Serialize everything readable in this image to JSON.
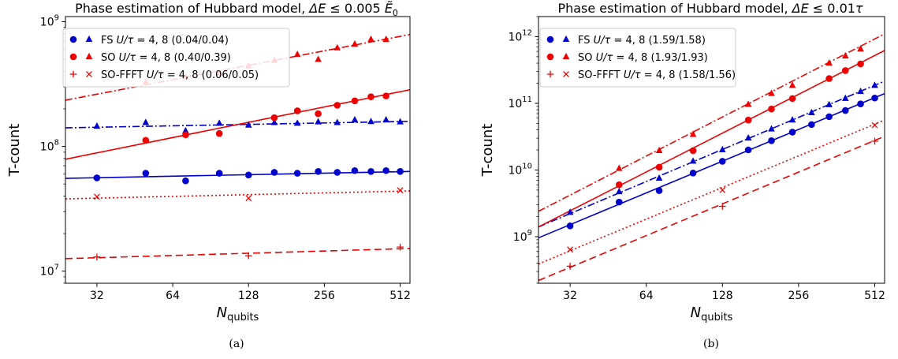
{
  "chart_data": [
    {
      "type": "scatter",
      "title": "Phase estimation of Hubbard model, ΔE ≤ 0.005 Ẽ₀",
      "title_parts": {
        "lead": "Phase estimation of Hubbard model, ",
        "delta": "ΔE",
        "le": " ≤ 0.005 ",
        "sym": "Ẽ",
        "sub": "0"
      },
      "caption": "(a)",
      "xlabel": {
        "main": "N",
        "sub": "qubits"
      },
      "ylabel": "T-count",
      "x_scale": "log2",
      "y_scale": "log10",
      "xlim": [
        24,
        560
      ],
      "ylim": [
        8000000,
        1100000000
      ],
      "x_ticks": [
        32,
        64,
        128,
        256,
        512
      ],
      "x_tick_labels": [
        "32",
        "64",
        "128",
        "256",
        "512"
      ],
      "y_ticks": [
        10000000,
        100000000,
        1000000000
      ],
      "y_tick_labels": [
        {
          "base": "10",
          "exp": "7"
        },
        {
          "base": "10",
          "exp": "8"
        },
        {
          "base": "10",
          "exp": "9"
        }
      ],
      "legend_position": "top-left",
      "series": [
        {
          "name": "FS U/τ = 4",
          "color": "#0000cc",
          "marker": "circle",
          "x": [
            32,
            50,
            72,
            98,
            128,
            162,
            200,
            242,
            288,
            338,
            392,
            450,
            512
          ],
          "y": [
            56000000,
            61000000,
            53000000,
            61000000,
            59000000,
            62000000,
            61000000,
            63000000,
            62000000,
            64000000,
            63000000,
            64000000,
            63000000
          ],
          "fit": {
            "x": [
              24,
              560
            ],
            "y": [
              55500000,
              63000000
            ],
            "dash": "solid"
          }
        },
        {
          "name": "FS U/τ = 8",
          "color": "#0000cc",
          "marker": "triangle",
          "x": [
            32,
            50,
            72,
            98,
            128,
            162,
            200,
            242,
            288,
            338,
            392,
            450,
            512
          ],
          "y": [
            145000000,
            155000000,
            133000000,
            153000000,
            148000000,
            155000000,
            153000000,
            157000000,
            155000000,
            163000000,
            158000000,
            163000000,
            157000000
          ],
          "fit": {
            "x": [
              24,
              560
            ],
            "y": [
              141000000,
              159000000
            ],
            "dash": "dashdot"
          }
        },
        {
          "name": "SO U/τ = 4",
          "color": "#ee0000",
          "marker": "circle",
          "x": [
            50,
            72,
            98,
            162,
            200,
            242,
            288,
            338,
            392,
            450
          ],
          "y": [
            112000000,
            124000000,
            127000000,
            170000000,
            193000000,
            183000000,
            214000000,
            232000000,
            250000000,
            254000000
          ],
          "fit": {
            "x": [
              24,
              560
            ],
            "y": [
              79000000,
              285000000
            ],
            "dash": "solid"
          }
        },
        {
          "name": "SO U/τ = 8",
          "color": "#ee0000",
          "marker": "triangle",
          "x": [
            50,
            72,
            98,
            128,
            162,
            200,
            242,
            288,
            338,
            392,
            450
          ],
          "y": [
            328000000,
            360000000,
            387000000,
            440000000,
            490000000,
            545000000,
            497000000,
            615000000,
            660000000,
            720000000,
            720000000
          ],
          "fit": {
            "x": [
              24,
              560
            ],
            "y": [
              235000000,
              790000000
            ],
            "dash": "dashdot"
          }
        },
        {
          "name": "SO-FFFT U/τ = 4",
          "color": "#ee0000",
          "marker": "plus",
          "x": [
            32,
            128,
            512
          ],
          "y": [
            13000000,
            13300000,
            15600000
          ],
          "fit": {
            "x": [
              24,
              560
            ],
            "y": [
              12600000,
              15200000
            ],
            "dash": "dashed"
          }
        },
        {
          "name": "SO-FFFT U/τ = 8",
          "color": "#ee0000",
          "marker": "x",
          "x": [
            32,
            128,
            512
          ],
          "y": [
            39500000,
            38500000,
            44500000
          ],
          "fit": {
            "x": [
              24,
              560
            ],
            "y": [
              38000000,
              44000000
            ],
            "dash": "dotted"
          }
        }
      ],
      "legend": [
        {
          "label": "FS",
          "expr": "U/τ",
          "rest": " = 4, 8 (0.04/0.04)",
          "color": "#0000cc",
          "markers": [
            "circle",
            "triangle"
          ]
        },
        {
          "label": "SO",
          "expr": "U/τ",
          "rest": " = 4, 8 (0.40/0.39)",
          "color": "#ee0000",
          "markers": [
            "circle",
            "triangle"
          ]
        },
        {
          "label": "SO-FFFT",
          "expr": "U/τ",
          "rest": " = 4, 8 (0.06/0.05)",
          "color": "#ee0000",
          "markers": [
            "plus",
            "x"
          ]
        }
      ]
    },
    {
      "type": "scatter",
      "title": "Phase estimation of Hubbard model, ΔE ≤ 0.01τ",
      "title_parts": {
        "lead": "Phase estimation of Hubbard model, ",
        "delta": "ΔE",
        "le": " ≤ 0.01",
        "sym": "τ",
        "sub": ""
      },
      "caption": "(b)",
      "xlabel": {
        "main": "N",
        "sub": "qubits"
      },
      "ylabel": "T-count",
      "x_scale": "log2",
      "y_scale": "log10",
      "xlim": [
        24,
        560
      ],
      "ylim": [
        200000000,
        2000000000000
      ],
      "x_ticks": [
        32,
        64,
        128,
        256,
        512
      ],
      "x_tick_labels": [
        "32",
        "64",
        "128",
        "256",
        "512"
      ],
      "y_ticks": [
        1000000000,
        10000000000,
        100000000000,
        1000000000000
      ],
      "y_tick_labels": [
        {
          "base": "10",
          "exp": "9"
        },
        {
          "base": "10",
          "exp": "10"
        },
        {
          "base": "10",
          "exp": "11"
        },
        {
          "base": "10",
          "exp": "12"
        }
      ],
      "legend_position": "top-left",
      "series": [
        {
          "name": "FS U/τ = 4",
          "color": "#0000cc",
          "marker": "circle",
          "x": [
            32,
            50,
            72,
            98,
            128,
            162,
            200,
            242,
            288,
            338,
            392,
            450,
            512
          ],
          "y": [
            1450000000,
            3300000000,
            4900000000,
            9000000000,
            13500000000,
            20000000000,
            27500000000,
            37000000000,
            48000000000,
            63000000000,
            78000000000,
            98000000000,
            120000000000
          ],
          "fit": {
            "x": [
              24,
              560
            ],
            "y": [
              960000000,
              140000000000
            ],
            "dash": "solid"
          }
        },
        {
          "name": "FS U/τ = 8",
          "color": "#0000cc",
          "marker": "triangle",
          "x": [
            32,
            50,
            72,
            98,
            128,
            162,
            200,
            242,
            288,
            338,
            392,
            450,
            512
          ],
          "y": [
            2300000000,
            4700000000,
            7500000000,
            13500000000,
            20000000000,
            30000000000,
            41000000000,
            56000000000,
            72000000000,
            95000000000,
            118000000000,
            150000000000,
            185000000000
          ],
          "fit": {
            "x": [
              24,
              560
            ],
            "y": [
              1400000000,
              215000000000
            ],
            "dash": "dashdot"
          }
        },
        {
          "name": "SO U/τ = 4",
          "color": "#ee0000",
          "marker": "circle",
          "x": [
            50,
            72,
            98,
            162,
            200,
            242,
            338,
            392,
            450
          ],
          "y": [
            6000000000,
            11000000000,
            19500000000,
            56000000000,
            82000000000,
            118000000000,
            235000000000,
            310000000000,
            390000000000
          ],
          "fit": {
            "x": [
              24,
              560
            ],
            "y": [
              1400000000,
              620000000000
            ],
            "dash": "solid"
          }
        },
        {
          "name": "SO U/τ = 8",
          "color": "#ee0000",
          "marker": "triangle",
          "x": [
            50,
            72,
            98,
            162,
            200,
            242,
            338,
            392,
            450
          ],
          "y": [
            10500000000,
            19500000000,
            34000000000,
            96000000000,
            140000000000,
            185000000000,
            400000000000,
            510000000000,
            650000000000
          ],
          "fit": {
            "x": [
              24,
              560
            ],
            "y": [
              2400000000,
              1100000000000
            ],
            "dash": "dashdot"
          }
        },
        {
          "name": "SO-FFFT U/τ = 4",
          "color": "#ee0000",
          "marker": "plus",
          "x": [
            32,
            128,
            512
          ],
          "y": [
            360000000,
            2850000000,
            27000000000
          ],
          "fit": {
            "x": [
              24,
              560
            ],
            "y": [
              220000000,
              32000000000
            ],
            "dash": "dashed"
          }
        },
        {
          "name": "SO-FFFT U/τ = 8",
          "color": "#ee0000",
          "marker": "x",
          "x": [
            32,
            128,
            512
          ],
          "y": [
            640000000,
            5000000000,
            47000000000
          ],
          "fit": {
            "x": [
              24,
              560
            ],
            "y": [
              390000000,
              56000000000
            ],
            "dash": "dotted"
          }
        }
      ],
      "legend": [
        {
          "label": "FS",
          "expr": "U/τ",
          "rest": " = 4, 8 (1.59/1.58)",
          "color": "#0000cc",
          "markers": [
            "circle",
            "triangle"
          ]
        },
        {
          "label": "SO",
          "expr": "U/τ",
          "rest": " = 4, 8 (1.93/1.93)",
          "color": "#ee0000",
          "markers": [
            "circle",
            "triangle"
          ]
        },
        {
          "label": "SO-FFFT",
          "expr": "U/τ",
          "rest": " = 4, 8 (1.58/1.56)",
          "color": "#ee0000",
          "markers": [
            "plus",
            "x"
          ]
        }
      ]
    }
  ]
}
